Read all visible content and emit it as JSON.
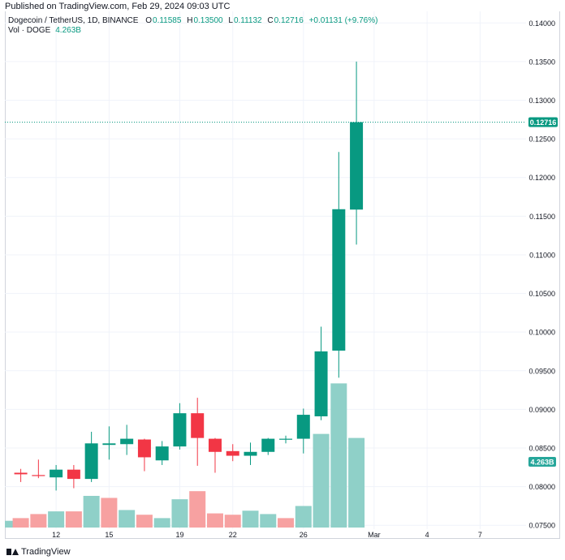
{
  "header": {
    "published": "Published on TradingView.com, Feb 29, 2024 09:03 UTC"
  },
  "legend": {
    "symbol": "Dogecoin / TetherUS, 1D, BINANCE",
    "open_label": "O",
    "open": "0.11585",
    "high_label": "H",
    "high": "0.13500",
    "low_label": "L",
    "low": "0.11132",
    "close_label": "C",
    "close": "0.12716",
    "change": "+0.01131 (+9.76%)",
    "vol_label": "Vol · DOGE",
    "vol_value": "4.263B"
  },
  "footer": {
    "brand": "TradingView"
  },
  "colors": {
    "up": "#089981",
    "down": "#f23645",
    "vol_up": "#8fd0c8",
    "vol_down": "#f7a1a1",
    "grid": "#f0f3fa",
    "price_line": "#089981",
    "vol_label_bg": "#26a69a"
  },
  "chart_data": {
    "type": "candlestick",
    "symbol": "DOGEUSDT",
    "interval": "1D",
    "y_axis": {
      "ylim": [
        0.0745,
        0.1415
      ],
      "ticks": [
        "0.07500",
        "0.08000",
        "0.08500",
        "0.09000",
        "0.09500",
        "0.10000",
        "0.10500",
        "0.11000",
        "0.11500",
        "0.12000",
        "0.12500",
        "0.13000",
        "0.13500",
        "0.14000"
      ]
    },
    "x_axis": {
      "ticks": [
        {
          "day": 12,
          "label": "12"
        },
        {
          "day": 15,
          "label": "15"
        },
        {
          "day": 19,
          "label": "19"
        },
        {
          "day": 22,
          "label": "22"
        },
        {
          "day": 26,
          "label": "26"
        },
        {
          "day": 30,
          "label": "Mar"
        },
        {
          "day": 33,
          "label": "4"
        },
        {
          "day": 36,
          "label": "7"
        }
      ]
    },
    "x_range": [
      9.1,
      38.6
    ],
    "last_price": "0.12716",
    "last_volume": "4.263B",
    "candles": [
      {
        "day": 10,
        "o": 0.0818,
        "h": 0.0823,
        "l": 0.0806,
        "c": 0.0816
      },
      {
        "day": 11,
        "o": 0.0815,
        "h": 0.0835,
        "l": 0.0811,
        "c": 0.0814
      },
      {
        "day": 12,
        "o": 0.0812,
        "h": 0.0828,
        "l": 0.0795,
        "c": 0.0822
      },
      {
        "day": 13,
        "o": 0.0822,
        "h": 0.0828,
        "l": 0.0798,
        "c": 0.081
      },
      {
        "day": 14,
        "o": 0.081,
        "h": 0.0871,
        "l": 0.0806,
        "c": 0.0856
      },
      {
        "day": 15,
        "o": 0.0854,
        "h": 0.0878,
        "l": 0.0835,
        "c": 0.0856
      },
      {
        "day": 16,
        "o": 0.0855,
        "h": 0.088,
        "l": 0.0841,
        "c": 0.0862
      },
      {
        "day": 17,
        "o": 0.0861,
        "h": 0.0862,
        "l": 0.082,
        "c": 0.0838
      },
      {
        "day": 18,
        "o": 0.0834,
        "h": 0.0859,
        "l": 0.0828,
        "c": 0.0852
      },
      {
        "day": 19,
        "o": 0.0852,
        "h": 0.0908,
        "l": 0.0848,
        "c": 0.0895
      },
      {
        "day": 20,
        "o": 0.0895,
        "h": 0.0915,
        "l": 0.0827,
        "c": 0.0863
      },
      {
        "day": 21,
        "o": 0.0862,
        "h": 0.0863,
        "l": 0.0818,
        "c": 0.0845
      },
      {
        "day": 22,
        "o": 0.0846,
        "h": 0.0855,
        "l": 0.0833,
        "c": 0.084
      },
      {
        "day": 23,
        "o": 0.084,
        "h": 0.0857,
        "l": 0.0828,
        "c": 0.0845
      },
      {
        "day": 24,
        "o": 0.0845,
        "h": 0.0863,
        "l": 0.0841,
        "c": 0.0862
      },
      {
        "day": 25,
        "o": 0.0861,
        "h": 0.0866,
        "l": 0.0856,
        "c": 0.0862
      },
      {
        "day": 26,
        "o": 0.0862,
        "h": 0.0901,
        "l": 0.0843,
        "c": 0.0893
      },
      {
        "day": 27,
        "o": 0.0891,
        "h": 0.1007,
        "l": 0.0886,
        "c": 0.0975
      },
      {
        "day": 28,
        "o": 0.0976,
        "h": 0.1233,
        "l": 0.0941,
        "c": 0.1159
      },
      {
        "day": 29,
        "o": 0.11585,
        "h": 0.135,
        "l": 0.11132,
        "c": 0.12716
      }
    ],
    "volume": [
      {
        "day": 9.3,
        "v": 0.1,
        "up": true
      },
      {
        "day": 10,
        "v": 0.14,
        "up": false
      },
      {
        "day": 11,
        "v": 0.2,
        "up": false
      },
      {
        "day": 12,
        "v": 0.24,
        "up": true
      },
      {
        "day": 13,
        "v": 0.24,
        "up": false
      },
      {
        "day": 14,
        "v": 0.47,
        "up": true
      },
      {
        "day": 15,
        "v": 0.44,
        "up": false
      },
      {
        "day": 16,
        "v": 0.26,
        "up": true
      },
      {
        "day": 17,
        "v": 0.19,
        "up": false
      },
      {
        "day": 18,
        "v": 0.14,
        "up": true
      },
      {
        "day": 19,
        "v": 0.42,
        "up": true
      },
      {
        "day": 20,
        "v": 0.54,
        "up": false
      },
      {
        "day": 21,
        "v": 0.21,
        "up": false
      },
      {
        "day": 22,
        "v": 0.19,
        "up": false
      },
      {
        "day": 23,
        "v": 0.25,
        "up": true
      },
      {
        "day": 24,
        "v": 0.2,
        "up": true
      },
      {
        "day": 25,
        "v": 0.14,
        "up": false
      },
      {
        "day": 26,
        "v": 0.32,
        "up": true
      },
      {
        "day": 27,
        "v": 1.39,
        "up": true
      },
      {
        "day": 28,
        "v": 2.14,
        "up": true
      },
      {
        "day": 29,
        "v": 1.33,
        "up": true
      }
    ]
  }
}
